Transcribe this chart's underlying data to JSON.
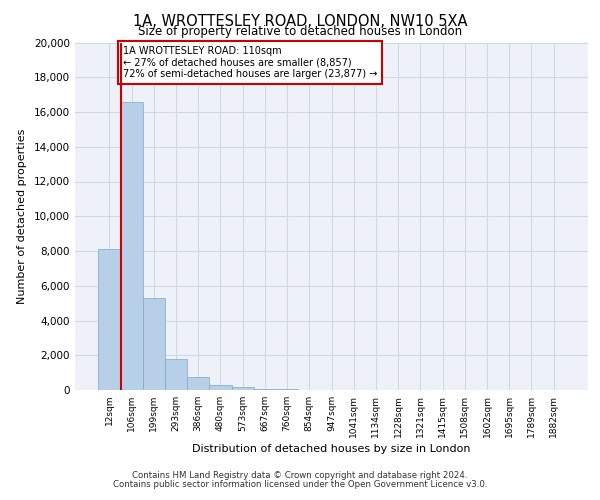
{
  "title_line1": "1A, WROTTESLEY ROAD, LONDON, NW10 5XA",
  "title_line2": "Size of property relative to detached houses in London",
  "xlabel": "Distribution of detached houses by size in London",
  "ylabel": "Number of detached properties",
  "footer_line1": "Contains HM Land Registry data © Crown copyright and database right 2024.",
  "footer_line2": "Contains public sector information licensed under the Open Government Licence v3.0.",
  "bin_labels": [
    "12sqm",
    "106sqm",
    "199sqm",
    "293sqm",
    "386sqm",
    "480sqm",
    "573sqm",
    "667sqm",
    "760sqm",
    "854sqm",
    "947sqm",
    "1041sqm",
    "1134sqm",
    "1228sqm",
    "1321sqm",
    "1415sqm",
    "1508sqm",
    "1602sqm",
    "1695sqm",
    "1789sqm",
    "1882sqm"
  ],
  "bar_values": [
    8100,
    16550,
    5300,
    1800,
    720,
    270,
    170,
    80,
    40,
    0,
    0,
    0,
    0,
    0,
    0,
    0,
    0,
    0,
    0,
    0,
    0
  ],
  "bar_color": "#b8cfe8",
  "bar_edge_color": "#7da8cc",
  "grid_color": "#d0d8e8",
  "background_color": "#eef2f8",
  "marker_line_color": "#cc0000",
  "annotation_text_line1": "1A WROTTESLEY ROAD: 110sqm",
  "annotation_text_line2": "← 27% of detached houses are smaller (8,857)",
  "annotation_text_line3": "72% of semi-detached houses are larger (23,877) →",
  "annotation_box_color": "#ffffff",
  "annotation_box_edge_color": "#cc0000",
  "ylim": [
    0,
    20000
  ],
  "yticks": [
    0,
    2000,
    4000,
    6000,
    8000,
    10000,
    12000,
    14000,
    16000,
    18000,
    20000
  ]
}
